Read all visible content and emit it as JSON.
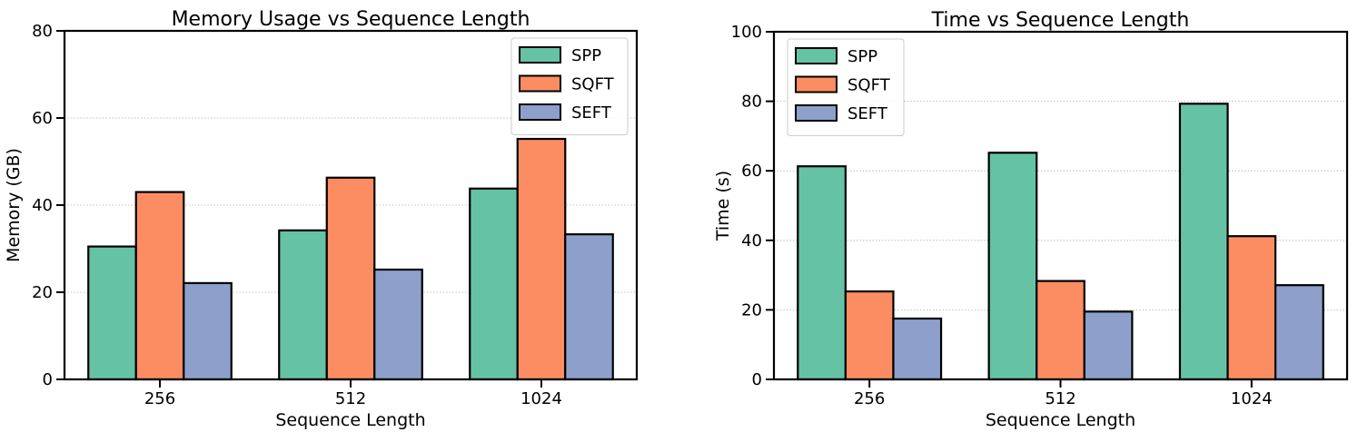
{
  "chart_data": [
    {
      "type": "bar",
      "title": "Memory Usage vs Sequence Length",
      "xlabel": "Sequence Length",
      "ylabel": "Memory (GB)",
      "categories": [
        "256",
        "512",
        "1024"
      ],
      "ylim": [
        0,
        80
      ],
      "yticks": [
        0,
        20,
        40,
        60,
        80
      ],
      "grid": "y, dotted",
      "legend": "top-right",
      "series": [
        {
          "name": "SPP",
          "values": [
            30.5,
            34.2,
            43.8
          ],
          "color": "#66c2a5"
        },
        {
          "name": "SQFT",
          "values": [
            43.0,
            46.3,
            55.2
          ],
          "color": "#fc8d62"
        },
        {
          "name": "SEFT",
          "values": [
            22.1,
            25.2,
            33.3
          ],
          "color": "#8da0cb"
        }
      ]
    },
    {
      "type": "bar",
      "title": "Time vs Sequence Length",
      "xlabel": "Sequence Length",
      "ylabel": "Time (s)",
      "categories": [
        "256",
        "512",
        "1024"
      ],
      "ylim": [
        0,
        100
      ],
      "yticks": [
        0,
        20,
        40,
        60,
        80,
        100
      ],
      "grid": "y, dotted",
      "legend": "top-left",
      "series": [
        {
          "name": "SPP",
          "values": [
            61.3,
            65.2,
            79.3
          ],
          "color": "#66c2a5"
        },
        {
          "name": "SQFT",
          "values": [
            25.3,
            28.3,
            41.2
          ],
          "color": "#fc8d62"
        },
        {
          "name": "SEFT",
          "values": [
            17.5,
            19.5,
            27.1
          ],
          "color": "#8da0cb"
        }
      ]
    }
  ]
}
